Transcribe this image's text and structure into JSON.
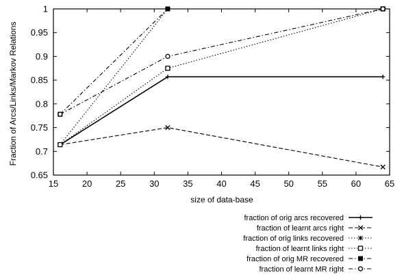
{
  "chart_data": {
    "type": "line",
    "xlabel": "size of data-base",
    "ylabel": "Fraction of Arcs/Links/Markov Relations",
    "xlim": [
      15,
      65
    ],
    "ylim": [
      0.65,
      1.0
    ],
    "xticks": [
      "15",
      "20",
      "25",
      "30",
      "35",
      "40",
      "45",
      "50",
      "55",
      "60",
      "65"
    ],
    "yticks": [
      "0.65",
      "0.7",
      "0.75",
      "0.8",
      "0.85",
      "0.9",
      "0.95",
      "1"
    ],
    "grid": false,
    "legend_position": "below-right",
    "series": [
      {
        "name": "fraction of orig arcs recovered",
        "x": [
          16,
          32,
          64
        ],
        "y": [
          0.714,
          0.857,
          0.857
        ],
        "dash": "solid",
        "marker": "plus",
        "legend_symbol": "plus"
      },
      {
        "name": "fraction of learnt arcs right",
        "x": [
          16,
          32,
          64
        ],
        "y": [
          0.714,
          0.75,
          0.667
        ],
        "dash": "dashed",
        "marker": "cross",
        "legend_symbol": "cross"
      },
      {
        "name": "fraction of orig links recovered",
        "x": [
          16,
          32
        ],
        "y": [
          0.714,
          1.0
        ],
        "dash": "dotted",
        "marker": "none",
        "legend_symbol": "star"
      },
      {
        "name": "fraction of learnt links right",
        "x": [
          16,
          32,
          64
        ],
        "y": [
          0.714,
          0.875,
          1.0
        ],
        "dash": "dotted",
        "marker": "square-open",
        "legend_symbol": "square-open"
      },
      {
        "name": "fraction of orig MR recovered",
        "x": [
          16,
          32
        ],
        "y": [
          0.778,
          1.0
        ],
        "dash": "dashdot",
        "marker": "square-filled",
        "legend_symbol": "square-filled"
      },
      {
        "name": "fraction of learnt MR right",
        "x": [
          16,
          32,
          64
        ],
        "y": [
          0.778,
          0.9,
          1.0
        ],
        "dash": "dashdot",
        "marker": "circle-open",
        "legend_symbol": "circle-open"
      }
    ]
  }
}
